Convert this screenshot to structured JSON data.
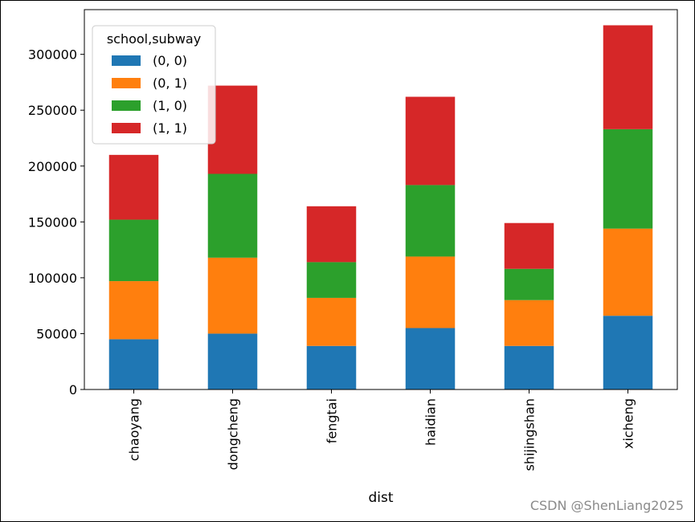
{
  "chart_data": {
    "type": "bar",
    "stacked": true,
    "categories": [
      "chaoyang",
      "dongcheng",
      "fengtai",
      "haidian",
      "shijingshan",
      "xicheng"
    ],
    "xlabel": "dist",
    "ylabel": "",
    "ylim": [
      0,
      340000
    ],
    "yticks": [
      0,
      50000,
      100000,
      150000,
      200000,
      250000,
      300000
    ],
    "yticklabels": [
      "0",
      "50000",
      "100000",
      "150000",
      "200000",
      "250000",
      "300000"
    ],
    "grid": false,
    "legend": {
      "title": "school,subway",
      "placement": "top-left"
    },
    "series": [
      {
        "name": "(0, 0)",
        "color": "#1f77b4",
        "values": [
          45000,
          50000,
          39000,
          55000,
          39000,
          66000
        ]
      },
      {
        "name": "(0, 1)",
        "color": "#ff7f0e",
        "values": [
          52000,
          68000,
          43000,
          64000,
          41000,
          78000
        ]
      },
      {
        "name": "(1, 0)",
        "color": "#2ca02c",
        "values": [
          55000,
          75000,
          32000,
          64000,
          28000,
          89000
        ]
      },
      {
        "name": "(1, 1)",
        "color": "#d62728",
        "values": [
          58000,
          79000,
          50000,
          79000,
          41000,
          93000
        ]
      }
    ]
  },
  "watermark": "CSDN @ShenLiang2025"
}
